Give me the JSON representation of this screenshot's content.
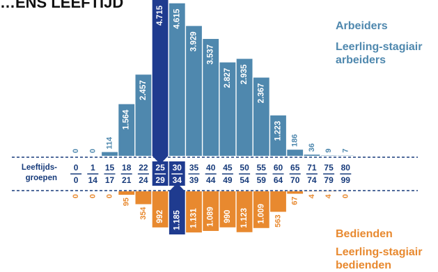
{
  "title": "…ENS LEEFTIJD",
  "colors": {
    "blue": "#4f88ae",
    "blue_dark": "#1f3b8f",
    "orange": "#e8892f",
    "label_dark": "#163a7a"
  },
  "legend": {
    "arbeiders": "Arbeiders",
    "leerling_arbeiders_line1": "Leerling-stagiair",
    "leerling_arbeiders_line2": "arbeiders",
    "bedienden": "Bedienden",
    "leerling_bedienden_line1": "Leerling-stagiair",
    "leerling_bedienden_line2": "bedienden"
  },
  "chart_data": {
    "type": "bar",
    "axis_label_line1": "Leeftijds-",
    "axis_label_line2": "groepen",
    "age_groups": [
      {
        "from": "0",
        "to": "0",
        "arbeiders": 0,
        "arbeiders_label": "0",
        "bedienden": 0,
        "bedienden_label": "0"
      },
      {
        "from": "1",
        "to": "14",
        "arbeiders": 0,
        "arbeiders_label": "0",
        "bedienden": 0,
        "bedienden_label": "0"
      },
      {
        "from": "15",
        "to": "17",
        "arbeiders": 114,
        "arbeiders_label": "114",
        "bedienden": 0,
        "bedienden_label": "0"
      },
      {
        "from": "18",
        "to": "21",
        "arbeiders": 1564,
        "arbeiders_label": "1.564",
        "bedienden": 95,
        "bedienden_label": "95"
      },
      {
        "from": "22",
        "to": "24",
        "arbeiders": 2457,
        "arbeiders_label": "2.457",
        "bedienden": 354,
        "bedienden_label": "354"
      },
      {
        "from": "25",
        "to": "29",
        "arbeiders": 4715,
        "arbeiders_label": "4.715",
        "bedienden": 992,
        "bedienden_label": "992",
        "highlight_top": true
      },
      {
        "from": "30",
        "to": "34",
        "arbeiders": 4615,
        "arbeiders_label": "4.615",
        "bedienden": 1185,
        "bedienden_label": "1.185",
        "highlight_bottom": true
      },
      {
        "from": "35",
        "to": "39",
        "arbeiders": 3929,
        "arbeiders_label": "3.929",
        "bedienden": 1131,
        "bedienden_label": "1.131"
      },
      {
        "from": "40",
        "to": "44",
        "arbeiders": 3537,
        "arbeiders_label": "3.537",
        "bedienden": 1089,
        "bedienden_label": "1.089"
      },
      {
        "from": "45",
        "to": "49",
        "arbeiders": 2827,
        "arbeiders_label": "2.827",
        "bedienden": 990,
        "bedienden_label": "990"
      },
      {
        "from": "50",
        "to": "54",
        "arbeiders": 2935,
        "arbeiders_label": "2.935",
        "bedienden": 1123,
        "bedienden_label": "1.123"
      },
      {
        "from": "55",
        "to": "59",
        "arbeiders": 2367,
        "arbeiders_label": "2.367",
        "bedienden": 1009,
        "bedienden_label": "1.009"
      },
      {
        "from": "60",
        "to": "64",
        "arbeiders": 1223,
        "arbeiders_label": "1.223",
        "bedienden": 563,
        "bedienden_label": "563"
      },
      {
        "from": "65",
        "to": "70",
        "arbeiders": 186,
        "arbeiders_label": "186",
        "bedienden": 67,
        "bedienden_label": "67"
      },
      {
        "from": "71",
        "to": "74",
        "arbeiders": 36,
        "arbeiders_label": "36",
        "bedienden": 4,
        "bedienden_label": "4"
      },
      {
        "from": "75",
        "to": "79",
        "arbeiders": 9,
        "arbeiders_label": "9",
        "bedienden": 4,
        "bedienden_label": "4"
      },
      {
        "from": "80",
        "to": "99",
        "arbeiders": 7,
        "arbeiders_label": "7",
        "bedienden": 0,
        "bedienden_label": "0"
      }
    ]
  }
}
